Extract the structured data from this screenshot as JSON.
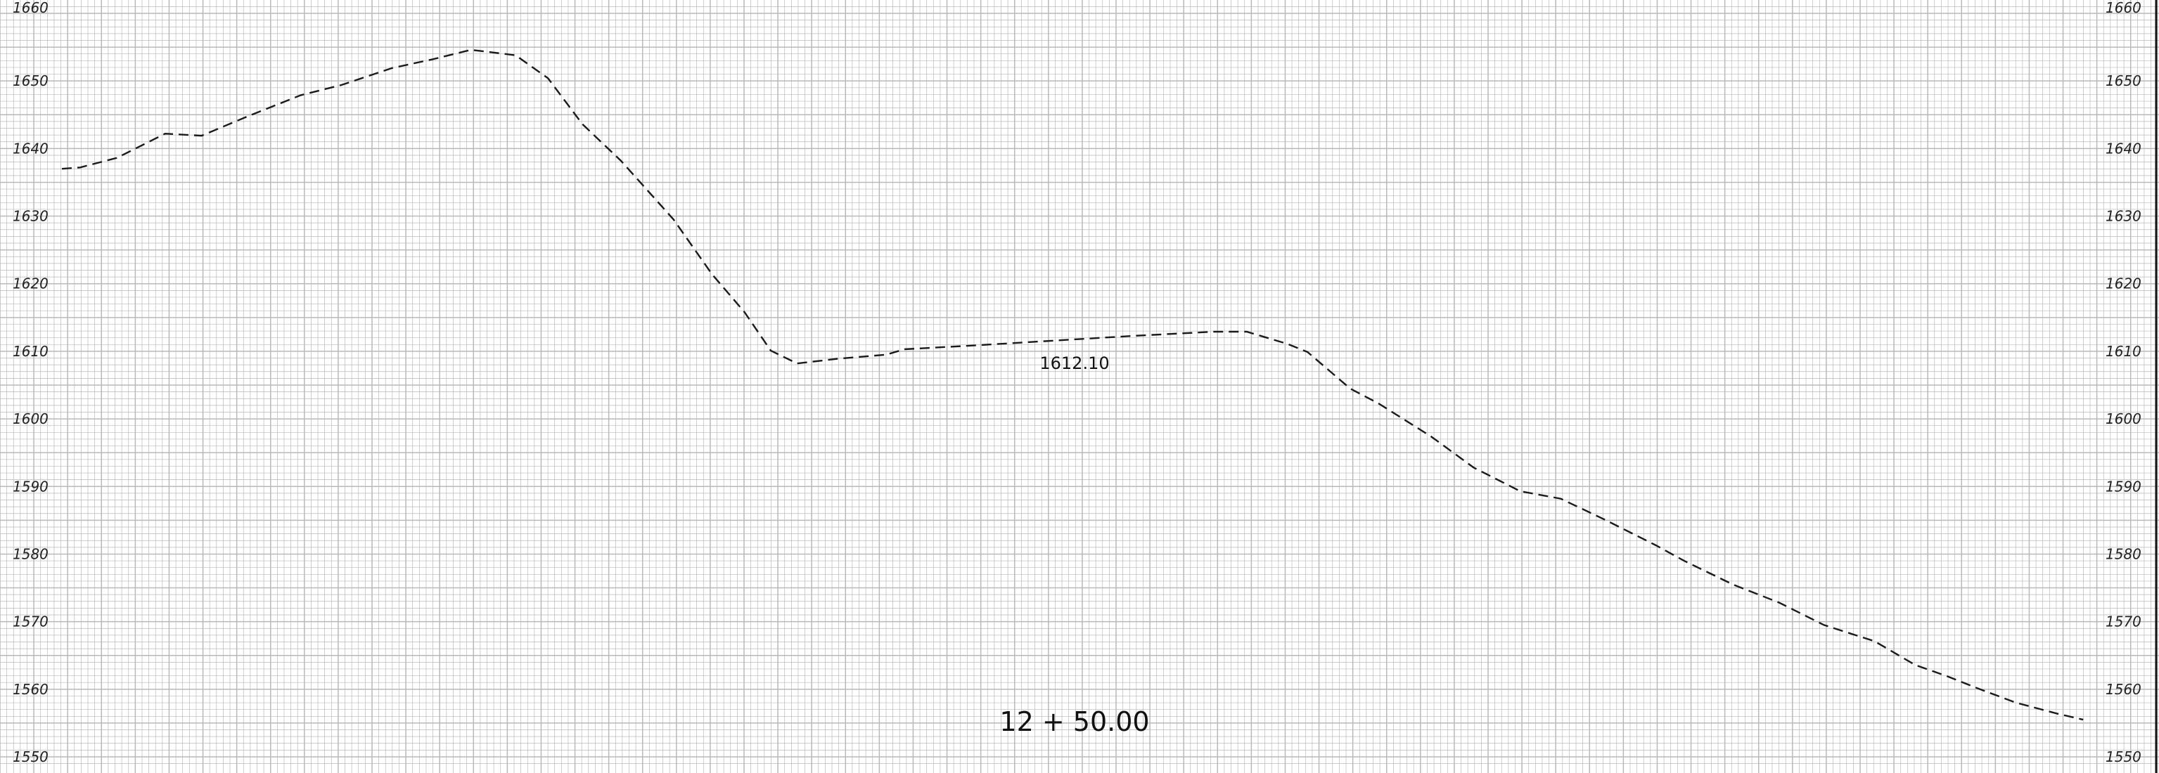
{
  "chart_data": {
    "type": "line",
    "title": "",
    "xlabel": "",
    "ylabel": "",
    "ylim": [
      1550,
      1660
    ],
    "y_ticks_left": [
      "1660",
      "1650",
      "1640",
      "1630",
      "1620",
      "1610",
      "1600",
      "1590",
      "1580",
      "1570",
      "1560",
      "1550"
    ],
    "y_ticks_right": [
      "1660",
      "1650",
      "1640",
      "1630",
      "1620",
      "1610",
      "1600",
      "1590",
      "1580",
      "1570",
      "1560",
      "1550"
    ],
    "grid": true,
    "line_style": "dashed",
    "series": [
      {
        "points": [
          [
            0.0,
            1637.0
          ],
          [
            0.009,
            1637.2
          ],
          [
            0.027,
            1638.6
          ],
          [
            0.051,
            1642.2
          ],
          [
            0.069,
            1641.9
          ],
          [
            0.092,
            1644.8
          ],
          [
            0.118,
            1647.9
          ],
          [
            0.138,
            1649.4
          ],
          [
            0.163,
            1651.9
          ],
          [
            0.183,
            1653.2
          ],
          [
            0.202,
            1654.6
          ],
          [
            0.224,
            1653.8
          ],
          [
            0.24,
            1650.4
          ],
          [
            0.257,
            1643.6
          ],
          [
            0.276,
            1638.2
          ],
          [
            0.302,
            1629.5
          ],
          [
            0.321,
            1621.4
          ],
          [
            0.337,
            1615.8
          ],
          [
            0.35,
            1610.1
          ],
          [
            0.363,
            1608.2
          ],
          [
            0.383,
            1608.9
          ],
          [
            0.407,
            1609.5
          ],
          [
            0.416,
            1610.3
          ],
          [
            0.452,
            1610.9
          ],
          [
            0.491,
            1611.6
          ],
          [
            0.53,
            1612.3
          ],
          [
            0.569,
            1612.9
          ],
          [
            0.585,
            1612.9
          ],
          [
            0.605,
            1611.1
          ],
          [
            0.615,
            1609.9
          ],
          [
            0.636,
            1604.5
          ],
          [
            0.65,
            1602.3
          ],
          [
            0.676,
            1597.4
          ],
          [
            0.697,
            1592.8
          ],
          [
            0.72,
            1589.3
          ],
          [
            0.74,
            1588.2
          ],
          [
            0.761,
            1585.2
          ],
          [
            0.787,
            1581.3
          ],
          [
            0.801,
            1579.0
          ],
          [
            0.825,
            1575.5
          ],
          [
            0.848,
            1572.8
          ],
          [
            0.87,
            1569.5
          ],
          [
            0.895,
            1567.1
          ],
          [
            0.915,
            1563.6
          ],
          [
            0.931,
            1561.9
          ],
          [
            0.947,
            1560.0
          ],
          [
            0.965,
            1558.0
          ],
          [
            0.985,
            1556.4
          ],
          [
            0.998,
            1555.5
          ]
        ]
      }
    ],
    "annotations": {
      "point_label": "1612.10",
      "station_label": "12 + 50.00"
    },
    "colors": {
      "grid": "#b9b9b9",
      "line": "#1a1a1a",
      "text": "#222222"
    }
  }
}
